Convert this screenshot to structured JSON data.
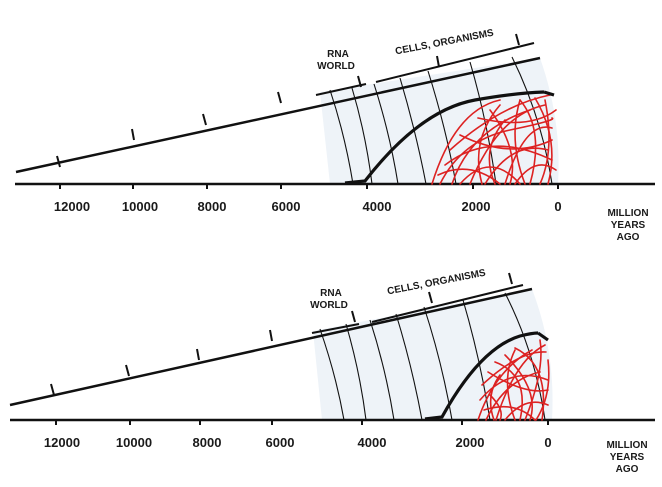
{
  "panels": [
    {
      "name": "top",
      "axis_labels": [
        "12000",
        "10000",
        "8000",
        "6000",
        "4000",
        "2000",
        "0"
      ],
      "axis_title": [
        "MILLION",
        "YEARS",
        "AGO"
      ],
      "rna_label": [
        "RNA",
        "WORLD"
      ],
      "cells_label": "CELLS, ORGANISMS"
    },
    {
      "name": "bottom",
      "axis_labels": [
        "12000",
        "10000",
        "8000",
        "6000",
        "4000",
        "2000",
        "0"
      ],
      "axis_title": [
        "MILLION",
        "YEARS",
        "AGO"
      ],
      "rna_label": [
        "RNA",
        "WORLD"
      ],
      "cells_label": "CELLS, ORGANISMS"
    }
  ],
  "colors": {
    "ink": "#111111",
    "network": "#dd2222",
    "fill": "#eef3f8"
  }
}
